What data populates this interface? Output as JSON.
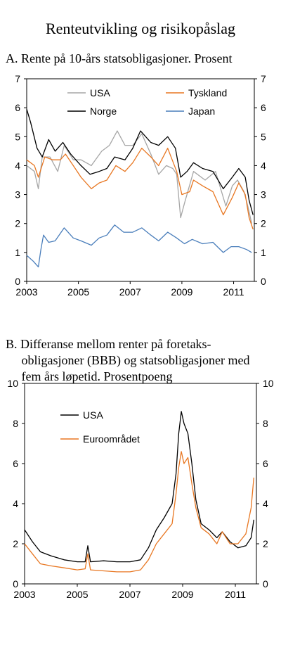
{
  "page": {
    "title": "Renteutvikling og risikopåslag",
    "panel_a_subtitle": "A. Rente på 10-års statsobligasjoner. Prosent",
    "panel_b_subtitle_lines": [
      "B.  Differanse mellom renter på foretaks-",
      "     obligasjoner (BBB) og statsobligasjoner med",
      "     fem års løpetid. Prosentpoeng"
    ]
  },
  "chart_data": [
    {
      "type": "line",
      "title": "A. Rente på 10-års statsobligasjoner. Prosent",
      "xlim": [
        2003,
        2011.8
      ],
      "ylim": [
        0,
        7
      ],
      "x_ticks": [
        "2003",
        "2005",
        "2007",
        "2009",
        "2011"
      ],
      "y_ticks": [
        "0",
        "1",
        "2",
        "3",
        "4",
        "5",
        "6",
        "7"
      ],
      "legend": [
        "USA",
        "Tyskland",
        "Norge",
        "Japan"
      ],
      "series": [
        {
          "name": "USA",
          "color": "#a6a6a6",
          "points": [
            [
              2003.0,
              4.0
            ],
            [
              2003.3,
              3.8
            ],
            [
              2003.45,
              3.2
            ],
            [
              2003.6,
              4.3
            ],
            [
              2003.9,
              4.3
            ],
            [
              2004.2,
              3.8
            ],
            [
              2004.45,
              4.7
            ],
            [
              2004.8,
              4.2
            ],
            [
              2005.1,
              4.2
            ],
            [
              2005.5,
              4.0
            ],
            [
              2005.9,
              4.5
            ],
            [
              2006.2,
              4.7
            ],
            [
              2006.5,
              5.2
            ],
            [
              2006.8,
              4.7
            ],
            [
              2007.1,
              4.7
            ],
            [
              2007.45,
              5.1
            ],
            [
              2007.8,
              4.4
            ],
            [
              2008.1,
              3.7
            ],
            [
              2008.4,
              4.0
            ],
            [
              2008.65,
              3.9
            ],
            [
              2008.8,
              3.7
            ],
            [
              2008.95,
              2.2
            ],
            [
              2009.1,
              2.7
            ],
            [
              2009.45,
              3.8
            ],
            [
              2009.9,
              3.5
            ],
            [
              2010.3,
              3.8
            ],
            [
              2010.7,
              2.6
            ],
            [
              2010.95,
              3.3
            ],
            [
              2011.15,
              3.5
            ],
            [
              2011.4,
              3.1
            ],
            [
              2011.55,
              2.6
            ],
            [
              2011.7,
              2.0
            ]
          ]
        },
        {
          "name": "Tyskland",
          "color": "#e87722",
          "points": [
            [
              2003.0,
              4.2
            ],
            [
              2003.3,
              4.0
            ],
            [
              2003.45,
              3.6
            ],
            [
              2003.7,
              4.3
            ],
            [
              2004.0,
              4.2
            ],
            [
              2004.3,
              4.2
            ],
            [
              2004.5,
              4.4
            ],
            [
              2004.8,
              4.0
            ],
            [
              2005.1,
              3.6
            ],
            [
              2005.5,
              3.2
            ],
            [
              2005.8,
              3.4
            ],
            [
              2006.1,
              3.5
            ],
            [
              2006.45,
              4.0
            ],
            [
              2006.8,
              3.8
            ],
            [
              2007.1,
              4.1
            ],
            [
              2007.45,
              4.6
            ],
            [
              2007.8,
              4.3
            ],
            [
              2008.1,
              4.0
            ],
            [
              2008.45,
              4.6
            ],
            [
              2008.8,
              3.8
            ],
            [
              2009.0,
              3.0
            ],
            [
              2009.3,
              3.1
            ],
            [
              2009.45,
              3.5
            ],
            [
              2009.8,
              3.3
            ],
            [
              2010.2,
              3.1
            ],
            [
              2010.6,
              2.3
            ],
            [
              2010.95,
              2.9
            ],
            [
              2011.2,
              3.4
            ],
            [
              2011.45,
              3.0
            ],
            [
              2011.6,
              2.2
            ],
            [
              2011.75,
              1.8
            ]
          ]
        },
        {
          "name": "Norge",
          "color": "#000000",
          "points": [
            [
              2003.0,
              5.95
            ],
            [
              2003.15,
              5.5
            ],
            [
              2003.4,
              4.6
            ],
            [
              2003.6,
              4.3
            ],
            [
              2003.85,
              4.9
            ],
            [
              2004.1,
              4.5
            ],
            [
              2004.4,
              4.8
            ],
            [
              2004.7,
              4.4
            ],
            [
              2005.1,
              4.0
            ],
            [
              2005.45,
              3.7
            ],
            [
              2005.8,
              3.8
            ],
            [
              2006.1,
              3.9
            ],
            [
              2006.4,
              4.3
            ],
            [
              2006.8,
              4.2
            ],
            [
              2007.1,
              4.6
            ],
            [
              2007.4,
              5.2
            ],
            [
              2007.8,
              4.8
            ],
            [
              2008.1,
              4.7
            ],
            [
              2008.45,
              5.0
            ],
            [
              2008.75,
              4.6
            ],
            [
              2008.95,
              3.6
            ],
            [
              2009.2,
              3.8
            ],
            [
              2009.45,
              4.1
            ],
            [
              2009.8,
              3.9
            ],
            [
              2010.2,
              3.8
            ],
            [
              2010.6,
              3.2
            ],
            [
              2010.95,
              3.6
            ],
            [
              2011.2,
              3.9
            ],
            [
              2011.45,
              3.6
            ],
            [
              2011.6,
              2.8
            ],
            [
              2011.75,
              2.3
            ]
          ]
        },
        {
          "name": "Japan",
          "color": "#4a7ebb",
          "points": [
            [
              2003.0,
              0.9
            ],
            [
              2003.25,
              0.7
            ],
            [
              2003.45,
              0.5
            ],
            [
              2003.55,
              1.1
            ],
            [
              2003.65,
              1.6
            ],
            [
              2003.85,
              1.35
            ],
            [
              2004.1,
              1.4
            ],
            [
              2004.45,
              1.85
            ],
            [
              2004.8,
              1.5
            ],
            [
              2005.1,
              1.4
            ],
            [
              2005.5,
              1.25
            ],
            [
              2005.8,
              1.5
            ],
            [
              2006.1,
              1.6
            ],
            [
              2006.4,
              1.95
            ],
            [
              2006.75,
              1.7
            ],
            [
              2007.1,
              1.7
            ],
            [
              2007.45,
              1.85
            ],
            [
              2007.8,
              1.6
            ],
            [
              2008.1,
              1.4
            ],
            [
              2008.45,
              1.7
            ],
            [
              2008.8,
              1.5
            ],
            [
              2009.1,
              1.3
            ],
            [
              2009.4,
              1.45
            ],
            [
              2009.8,
              1.3
            ],
            [
              2010.2,
              1.35
            ],
            [
              2010.6,
              1.0
            ],
            [
              2010.9,
              1.2
            ],
            [
              2011.2,
              1.2
            ],
            [
              2011.5,
              1.1
            ],
            [
              2011.7,
              1.0
            ]
          ]
        }
      ]
    },
    {
      "type": "line",
      "title": "B. Differanse mellom renter på foretaksobligasjoner (BBB) og statsobligasjoner med fem års løpetid. Prosentpoeng",
      "xlim": [
        2003,
        2011.8
      ],
      "ylim": [
        0,
        10
      ],
      "x_ticks": [
        "2003",
        "2005",
        "2007",
        "2009",
        "2011"
      ],
      "y_ticks": [
        "0",
        "2",
        "4",
        "6",
        "8",
        "10"
      ],
      "legend": [
        "USA",
        "Euroområdet"
      ],
      "series": [
        {
          "name": "USA",
          "color": "#000000",
          "points": [
            [
              2003.0,
              2.7
            ],
            [
              2003.3,
              2.1
            ],
            [
              2003.6,
              1.6
            ],
            [
              2004.0,
              1.4
            ],
            [
              2004.5,
              1.2
            ],
            [
              2005.0,
              1.1
            ],
            [
              2005.3,
              1.1
            ],
            [
              2005.4,
              1.9
            ],
            [
              2005.5,
              1.1
            ],
            [
              2006.0,
              1.15
            ],
            [
              2006.5,
              1.1
            ],
            [
              2007.0,
              1.1
            ],
            [
              2007.4,
              1.2
            ],
            [
              2007.7,
              1.8
            ],
            [
              2008.0,
              2.7
            ],
            [
              2008.3,
              3.3
            ],
            [
              2008.6,
              4.0
            ],
            [
              2008.75,
              5.5
            ],
            [
              2008.85,
              7.5
            ],
            [
              2008.95,
              8.6
            ],
            [
              2009.05,
              8.0
            ],
            [
              2009.2,
              7.5
            ],
            [
              2009.35,
              6.0
            ],
            [
              2009.5,
              4.2
            ],
            [
              2009.7,
              3.0
            ],
            [
              2010.0,
              2.7
            ],
            [
              2010.3,
              2.3
            ],
            [
              2010.5,
              2.6
            ],
            [
              2010.8,
              2.1
            ],
            [
              2011.1,
              1.8
            ],
            [
              2011.4,
              1.9
            ],
            [
              2011.6,
              2.3
            ],
            [
              2011.7,
              3.2
            ]
          ]
        },
        {
          "name": "Euroområdet",
          "color": "#e87722",
          "points": [
            [
              2003.0,
              2.0
            ],
            [
              2003.3,
              1.5
            ],
            [
              2003.6,
              1.0
            ],
            [
              2004.0,
              0.9
            ],
            [
              2004.5,
              0.8
            ],
            [
              2005.0,
              0.7
            ],
            [
              2005.3,
              0.75
            ],
            [
              2005.4,
              1.5
            ],
            [
              2005.5,
              0.7
            ],
            [
              2006.0,
              0.65
            ],
            [
              2006.5,
              0.6
            ],
            [
              2007.0,
              0.6
            ],
            [
              2007.4,
              0.7
            ],
            [
              2007.7,
              1.2
            ],
            [
              2008.0,
              2.0
            ],
            [
              2008.3,
              2.5
            ],
            [
              2008.6,
              3.0
            ],
            [
              2008.75,
              4.5
            ],
            [
              2008.85,
              5.8
            ],
            [
              2008.95,
              6.6
            ],
            [
              2009.05,
              6.0
            ],
            [
              2009.2,
              6.3
            ],
            [
              2009.35,
              5.0
            ],
            [
              2009.5,
              3.8
            ],
            [
              2009.7,
              2.8
            ],
            [
              2010.0,
              2.5
            ],
            [
              2010.3,
              2.0
            ],
            [
              2010.5,
              2.6
            ],
            [
              2010.8,
              2.0
            ],
            [
              2011.1,
              2.0
            ],
            [
              2011.4,
              2.5
            ],
            [
              2011.6,
              3.8
            ],
            [
              2011.7,
              5.3
            ]
          ]
        }
      ]
    }
  ]
}
